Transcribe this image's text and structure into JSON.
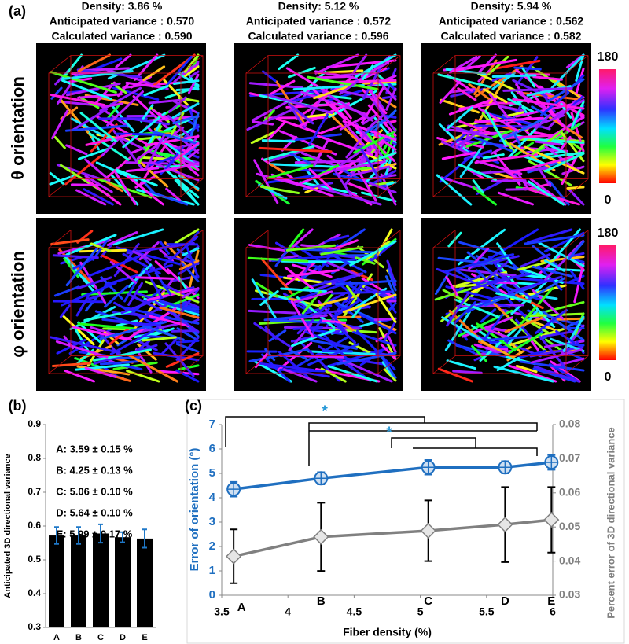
{
  "panel_labels": [
    "(a)",
    "(b)",
    "(c)"
  ],
  "renders": {
    "columns": [
      {
        "density": "Density: 3.86 %",
        "anticipated": "Anticipated variance : 0.570",
        "calculated": "Calculated variance : 0.590"
      },
      {
        "density": "Density: 5.12 %",
        "anticipated": "Anticipated variance : 0.572",
        "calculated": "Calculated variance : 0.596"
      },
      {
        "density": "Density: 5.94 %",
        "anticipated": "Anticipated variance : 0.562",
        "calculated": "Calculated variance : 0.582"
      }
    ],
    "rows": [
      "θ orientation",
      "φ orientation"
    ],
    "colorbars": [
      {
        "top": "180",
        "bottom": "0"
      },
      {
        "top": "180",
        "bottom": "0"
      }
    ]
  },
  "chart_data": [
    {
      "type": "bar",
      "categories": [
        "A",
        "B",
        "C",
        "D",
        "E"
      ],
      "values": [
        0.572,
        0.572,
        0.578,
        0.567,
        0.563
      ],
      "errors": [
        0.025,
        0.025,
        0.027,
        0.015,
        0.027
      ],
      "color": "#000000",
      "error_color": "#1f78c8",
      "ylim": [
        0.3,
        0.9
      ],
      "yticks": [
        0.3,
        0.4,
        0.5,
        0.6,
        0.7,
        0.8,
        0.9
      ],
      "ylabel": "Anticipated 3D directional variance",
      "annotations": [
        "A: 3.59 ± 0.15 %",
        "B: 4.25 ± 0.13 %",
        "C: 5.06 ± 0.10 %",
        "D: 5.64 ± 0.10 %",
        "E: 5.99 ± 0.17 %"
      ]
    },
    {
      "type": "line",
      "x": [
        3.59,
        4.25,
        5.06,
        5.64,
        5.99
      ],
      "series": [
        {
          "color": "#1f6fc0",
          "values": [
            4.35,
            4.8,
            5.25,
            5.25,
            5.45
          ],
          "errors": [
            0.3,
            0.25,
            0.3,
            0.25,
            0.3
          ],
          "marker": "circle"
        },
        {
          "color": "#808080",
          "axis": "y2",
          "values": [
            0.0414,
            0.0471,
            0.0489,
            0.0507,
            0.0521
          ],
          "errors": [
            0.0079,
            0.01,
            0.0089,
            0.011,
            0.0096
          ],
          "marker": "diamond"
        }
      ],
      "xlim": [
        3.5,
        6
      ],
      "xticks": [
        3.5,
        4,
        4.5,
        5,
        5.5,
        6
      ],
      "ylim": [
        0,
        7
      ],
      "yticks": [
        0,
        1,
        2,
        3,
        4,
        5,
        6,
        7
      ],
      "y2lim": [
        0.03,
        0.08
      ],
      "y2ticks": [
        0.03,
        0.04,
        0.05,
        0.06,
        0.07,
        0.08
      ],
      "xlabel": "Fiber density (%)",
      "ylabel": "Error of orientation (°)",
      "y2label": "Percent error of 3D directional variance",
      "point_labels": [
        "A",
        "B",
        "C",
        "D",
        "E"
      ],
      "annotations": [
        "*",
        "*"
      ]
    }
  ]
}
